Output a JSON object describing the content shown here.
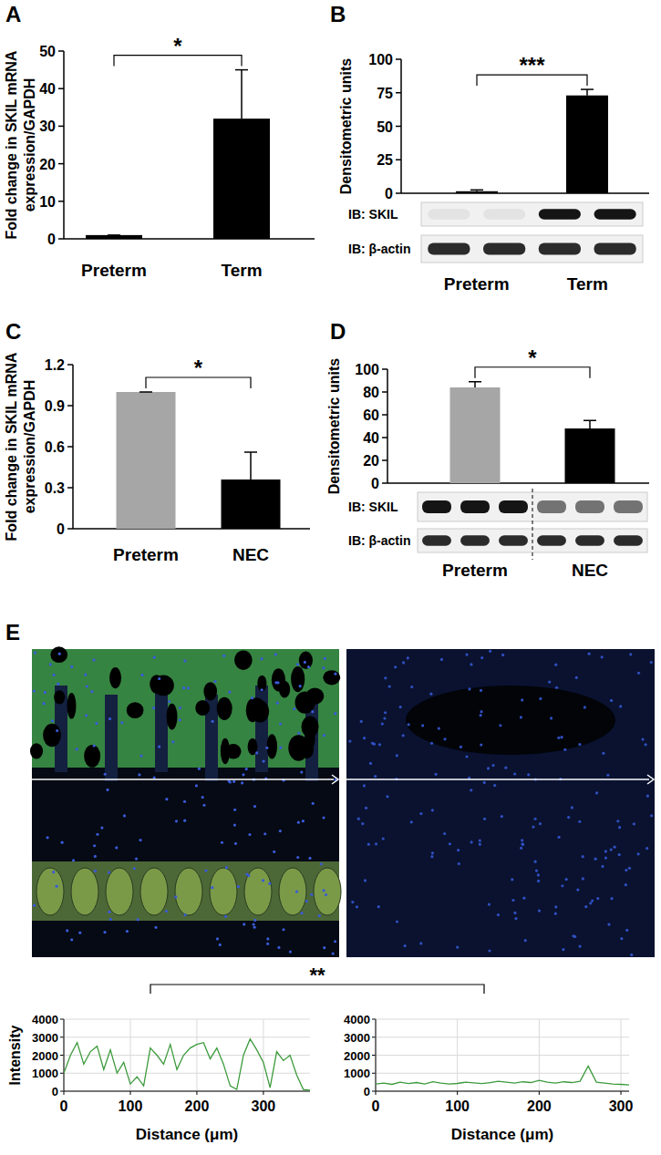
{
  "chart_data": [
    {
      "panel": "A",
      "type": "bar",
      "ylabel": [
        "Fold change in SKIL mRNA",
        "expression/GAPDH"
      ],
      "categories": [
        "Preterm",
        "Term"
      ],
      "values": [
        1,
        32
      ],
      "errors": [
        0,
        13
      ],
      "colors": [
        "#000000",
        "#000000"
      ],
      "ylim": [
        0,
        50
      ],
      "yticks": [
        0,
        10,
        20,
        30,
        40,
        50
      ],
      "annotations": [
        "*"
      ]
    },
    {
      "panel": "B",
      "type": "bar",
      "ylabel": [
        "Densitometric units"
      ],
      "categories": [
        "Preterm",
        "Term"
      ],
      "values": [
        1.5,
        73
      ],
      "errors": [
        1,
        4.5
      ],
      "colors": [
        "#000000",
        "#000000"
      ],
      "ylim": [
        0,
        100
      ],
      "yticks": [
        0,
        25,
        50,
        75,
        100
      ],
      "annotations": [
        "***"
      ],
      "blot_labels": [
        "IB: SKIL",
        "IB: β-actin"
      ]
    },
    {
      "panel": "C",
      "type": "bar",
      "ylabel": [
        "Fold change in SKIL mRNA",
        "expression/GAPDH"
      ],
      "categories": [
        "Preterm",
        "NEC"
      ],
      "values": [
        1,
        0.36
      ],
      "errors": [
        0,
        0.2
      ],
      "colors": [
        "#a6a6a6",
        "#000000"
      ],
      "ylim": [
        0,
        1.2
      ],
      "yticks": [
        0,
        0.3,
        0.6,
        0.9,
        1.2
      ],
      "annotations": [
        "*"
      ]
    },
    {
      "panel": "D",
      "type": "bar",
      "ylabel": [
        "Densitometric units"
      ],
      "categories": [
        "Preterm",
        "NEC"
      ],
      "values": [
        84,
        48
      ],
      "errors": [
        5,
        7
      ],
      "colors": [
        "#a6a6a6",
        "#000000"
      ],
      "ylim": [
        0,
        100
      ],
      "yticks": [
        0,
        20,
        40,
        60,
        80,
        100
      ],
      "annotations": [
        "*"
      ],
      "blot_labels": [
        "IB: SKIL",
        "IB: β-actin"
      ]
    },
    {
      "panel": "E",
      "type": "line",
      "ylabel": [
        "Intensity"
      ],
      "xlabel": "Distance (μm)",
      "x": [
        0,
        10,
        20,
        30,
        40,
        50,
        60,
        70,
        80,
        90,
        100,
        110,
        120,
        130,
        140,
        150,
        160,
        170,
        180,
        190,
        200,
        210,
        220,
        230,
        240,
        250,
        260,
        270,
        280,
        290,
        300,
        310,
        320,
        330,
        340,
        350,
        360,
        370
      ],
      "values": [
        1000,
        2000,
        2700,
        1500,
        2200,
        2500,
        1200,
        2300,
        1000,
        1600,
        400,
        800,
        300,
        2400,
        2000,
        1500,
        2600,
        1200,
        2000,
        2400,
        2600,
        2700,
        1800,
        2400,
        1500,
        300,
        100,
        2000,
        2900,
        2300,
        1600,
        200,
        2200,
        1700,
        2000,
        900,
        100,
        50
      ],
      "color": "#3c9a3c",
      "xlim": [
        0,
        370
      ],
      "xticks": [
        0,
        100,
        200,
        300
      ],
      "ylim": [
        0,
        4000
      ],
      "yticks": [
        0,
        1000,
        2000,
        3000,
        4000
      ],
      "grid": true,
      "annotations": [
        "**"
      ]
    },
    {
      "type": "line",
      "xlabel": "Distance (μm)",
      "x": [
        0,
        10,
        20,
        30,
        40,
        50,
        60,
        70,
        80,
        90,
        100,
        110,
        120,
        130,
        140,
        150,
        160,
        170,
        180,
        190,
        200,
        210,
        220,
        230,
        240,
        250,
        260,
        270,
        280,
        290,
        300,
        310
      ],
      "values": [
        400,
        450,
        380,
        500,
        420,
        480,
        400,
        520,
        450,
        400,
        430,
        500,
        460,
        420,
        480,
        550,
        500,
        450,
        520,
        480,
        600,
        500,
        450,
        520,
        480,
        550,
        1400,
        500,
        450,
        400,
        380,
        350
      ],
      "color": "#3c9a3c",
      "xlim": [
        0,
        310
      ],
      "xticks": [
        0,
        100,
        200,
        300
      ],
      "ylim": [
        0,
        4000
      ],
      "yticks": [
        0,
        1000,
        2000,
        3000,
        4000
      ],
      "grid": true
    }
  ]
}
